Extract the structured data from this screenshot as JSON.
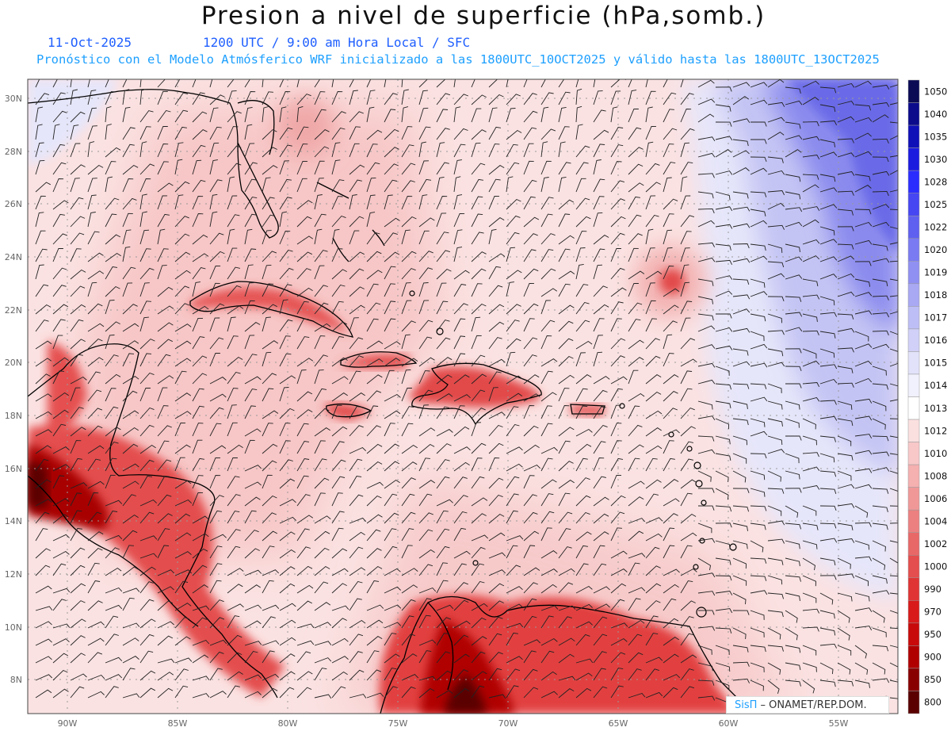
{
  "header": {
    "title": "Presion a nivel de superficie (hPa,somb.)",
    "date": "11-Oct-2025",
    "valid_time": "1200 UTC / 9:00 am Hora Local / SFC",
    "description": "Pronóstico con el Modelo Atmósferico WRF inicializado a las 1800UTC_10OCT2025 y válido hasta las  1800UTC_13OCT2025"
  },
  "axes": {
    "lat_labels": [
      "30N",
      "28N",
      "26N",
      "24N",
      "22N",
      "20N",
      "18N",
      "16N",
      "14N",
      "12N",
      "10N",
      "8N"
    ],
    "lon_labels": [
      "90W",
      "85W",
      "80W",
      "75W",
      "70W",
      "65W",
      "60W",
      "55W"
    ]
  },
  "colorbar": {
    "levels": [
      "1050",
      "1040",
      "1035",
      "1030",
      "1028",
      "1025",
      "1022",
      "1020",
      "1019",
      "1018",
      "1017",
      "1016",
      "1015",
      "1014",
      "1013",
      "1012",
      "1010",
      "1008",
      "1006",
      "1004",
      "1002",
      "1000",
      "990",
      "970",
      "950",
      "900",
      "850",
      "800"
    ],
    "colors": [
      "#0a0a55",
      "#0b0b8c",
      "#0f10b8",
      "#1b1be0",
      "#2b2dff",
      "#4646f2",
      "#5f60f0",
      "#7a7af2",
      "#9090f2",
      "#a8a8f3",
      "#bebef6",
      "#d0d0f8",
      "#e2e2fb",
      "#f1f1fd",
      "#ffffff",
      "#fbe0e0",
      "#f8c8c8",
      "#f5b0b0",
      "#f09898",
      "#ec8080",
      "#e86868",
      "#e44e4e",
      "#e03434",
      "#d81a1a",
      "#c80a0a",
      "#b00000",
      "#880000",
      "#5a0000"
    ]
  },
  "credit": {
    "brand": "SisΠ",
    "text": " – ONAMET/REP.DOM."
  }
}
